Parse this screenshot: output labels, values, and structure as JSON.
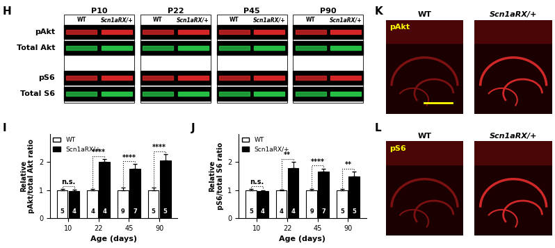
{
  "panel_labels": [
    "H",
    "I",
    "J",
    "K",
    "L"
  ],
  "blot": {
    "ages": [
      "P10",
      "P22",
      "P45",
      "P90"
    ],
    "genotypes": [
      "WT",
      "Scn1aRX/+"
    ],
    "rows": [
      "pAkt",
      "Total Akt",
      "pS6",
      "Total S6"
    ]
  },
  "chart_data": [
    {
      "type": "bar",
      "categories": [
        "10",
        "22",
        "45",
        "90"
      ],
      "xlabel": "Age (days)",
      "ylabel": "Relative\npAkt/total Akt ratio",
      "ylim": [
        0,
        3
      ],
      "yticks": [
        0,
        1,
        2
      ],
      "legend": "upper left",
      "series": [
        {
          "name": "WT",
          "color": "#ffffff",
          "values": [
            1.0,
            1.0,
            1.0,
            1.0
          ],
          "errors": [
            0.05,
            0.05,
            0.08,
            0.1
          ],
          "n": [
            5,
            4,
            9,
            5
          ]
        },
        {
          "name": "Scn1aRX/+",
          "color": "#000000",
          "values": [
            0.97,
            2.0,
            1.75,
            2.05
          ],
          "errors": [
            0.05,
            0.1,
            0.17,
            0.22
          ],
          "n": [
            4,
            4,
            7,
            5
          ]
        }
      ],
      "significance": [
        "n.s.",
        "****",
        "****",
        "****"
      ]
    },
    {
      "type": "bar",
      "categories": [
        "10",
        "22",
        "45",
        "90"
      ],
      "xlabel": "Age (days)",
      "ylabel": "Relative\npS6/total S6 ratio",
      "ylim": [
        0,
        3
      ],
      "yticks": [
        0,
        1,
        2
      ],
      "legend": "upper left",
      "series": [
        {
          "name": "WT",
          "color": "#ffffff",
          "values": [
            1.0,
            1.0,
            1.0,
            1.0
          ],
          "errors": [
            0.05,
            0.02,
            0.03,
            0.05
          ],
          "n": [
            5,
            4,
            9,
            5
          ]
        },
        {
          "name": "Scn1aRX/+",
          "color": "#000000",
          "values": [
            0.96,
            1.78,
            1.65,
            1.48
          ],
          "errors": [
            0.03,
            0.22,
            0.12,
            0.18
          ],
          "n": [
            4,
            4,
            7,
            5
          ]
        }
      ],
      "significance": [
        "n.s.",
        "**",
        "****",
        "**"
      ]
    }
  ],
  "images": [
    {
      "stain": "pAkt",
      "genotypes": [
        "WT",
        "Scn1aRX/+"
      ]
    },
    {
      "stain": "pS6",
      "genotypes": [
        "WT",
        "Scn1aRX/+"
      ]
    }
  ]
}
